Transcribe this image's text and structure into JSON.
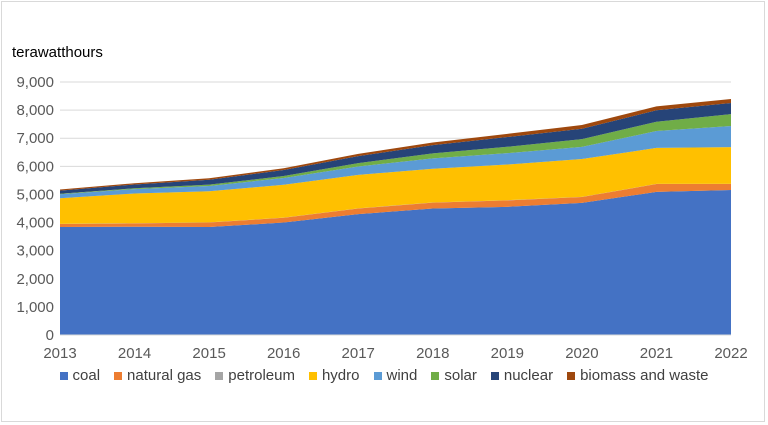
{
  "chart_data": {
    "type": "area",
    "stacked": true,
    "title": "",
    "ylabel": "terawatthours",
    "xlabel": "",
    "ylim": [
      0,
      9000
    ],
    "yticks": [
      "0",
      "1,000",
      "2,000",
      "3,000",
      "4,000",
      "5,000",
      "6,000",
      "7,000",
      "8,000",
      "9,000"
    ],
    "grid": true,
    "legend_position": "bottom",
    "categories": [
      "2013",
      "2014",
      "2015",
      "2016",
      "2017",
      "2018",
      "2019",
      "2020",
      "2021",
      "2022"
    ],
    "series": [
      {
        "name": "coal",
        "color": "#4472C4",
        "values": [
          3840,
          3850,
          3840,
          4000,
          4300,
          4500,
          4560,
          4700,
          5090,
          5160
        ]
      },
      {
        "name": "natural gas",
        "color": "#ED7D31",
        "values": [
          110,
          120,
          160,
          170,
          200,
          210,
          230,
          210,
          280,
          210
        ]
      },
      {
        "name": "petroleum",
        "color": "#A5A5A5",
        "values": [
          5,
          5,
          5,
          5,
          5,
          5,
          5,
          5,
          5,
          5
        ]
      },
      {
        "name": "hydro",
        "color": "#FFC000",
        "values": [
          910,
          1060,
          1110,
          1170,
          1190,
          1200,
          1270,
          1345,
          1280,
          1310
        ]
      },
      {
        "name": "wind",
        "color": "#5B9BD5",
        "values": [
          140,
          156,
          185,
          240,
          300,
          366,
          405,
          430,
          600,
          750
        ]
      },
      {
        "name": "solar",
        "color": "#70AD47",
        "values": [
          20,
          30,
          50,
          70,
          120,
          180,
          225,
          280,
          330,
          420
        ]
      },
      {
        "name": "nuclear",
        "color": "#264478",
        "values": [
          112,
          133,
          171,
          213,
          248,
          295,
          348,
          366,
          408,
          400
        ]
      },
      {
        "name": "biomass and waste",
        "color": "#9E480E",
        "values": [
          40,
          46,
          53,
          64,
          80,
          94,
          112,
          133,
          140,
          140
        ]
      }
    ]
  }
}
